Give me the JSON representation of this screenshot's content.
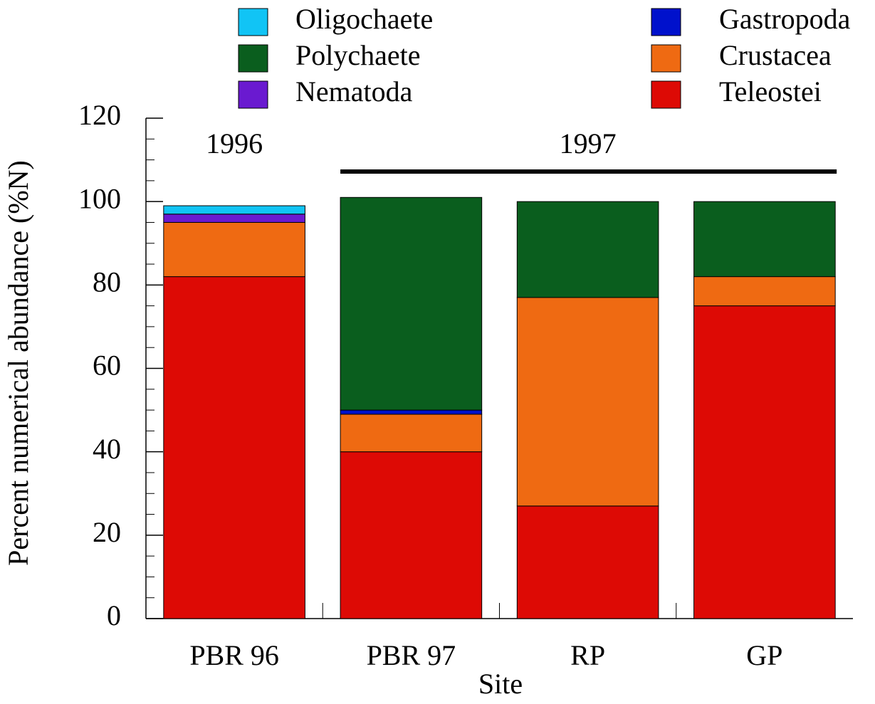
{
  "chart_data": {
    "type": "stacked_bar",
    "y_label": "Percent numerical abundance (%N)",
    "x_label": "Site",
    "categories": [
      "PBR 96",
      "PBR 97",
      "RP",
      "GP"
    ],
    "series": [
      {
        "name": "Teleostei",
        "color": "#dd0a05",
        "values": [
          82,
          40,
          27,
          75
        ]
      },
      {
        "name": "Crustacea",
        "color": "#ef6a12",
        "values": [
          13,
          9,
          50,
          7
        ]
      },
      {
        "name": "Nematoda",
        "color": "#6a1ad0",
        "values": [
          2,
          0,
          0,
          0
        ]
      },
      {
        "name": "Gastropoda",
        "color": "#0011cc",
        "values": [
          0,
          1,
          0,
          0
        ]
      },
      {
        "name": "Polychaete",
        "color": "#0a5e1e",
        "values": [
          0,
          51,
          23,
          18
        ]
      },
      {
        "name": "Oligochaete",
        "color": "#11c4f5",
        "values": [
          2,
          0,
          0,
          0
        ]
      }
    ],
    "annotations": [
      {
        "text": "1996"
      },
      {
        "text": "1997"
      }
    ],
    "ylim": [
      0,
      120
    ],
    "yticks": [
      0,
      20,
      40,
      60,
      80,
      100,
      120
    ],
    "yminorticks": [
      5,
      10,
      15,
      25,
      30,
      35,
      45,
      50,
      55,
      65,
      70,
      75,
      85,
      90,
      95,
      105,
      110,
      115
    ]
  }
}
